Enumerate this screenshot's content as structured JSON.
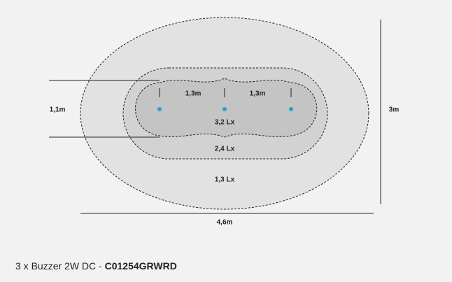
{
  "diagram": {
    "zones": [
      {
        "label": "3,2 Lx",
        "fill": "#c4c4c4"
      },
      {
        "label": "2,4 Lx",
        "fill": "#d2d2d2"
      },
      {
        "label": "1,3 Lx",
        "fill": "#e2e2e2"
      }
    ],
    "spacing_labels": [
      "1,3m",
      "1,3m"
    ],
    "dimensions": {
      "width": "4,6m",
      "height": "3m",
      "side": "1,1m"
    },
    "light_dot_color": "#2d9bd6",
    "light_count": 3
  },
  "caption": {
    "prefix": "3 x Buzzer 2W DC - ",
    "code": "C01254GRWRD"
  }
}
